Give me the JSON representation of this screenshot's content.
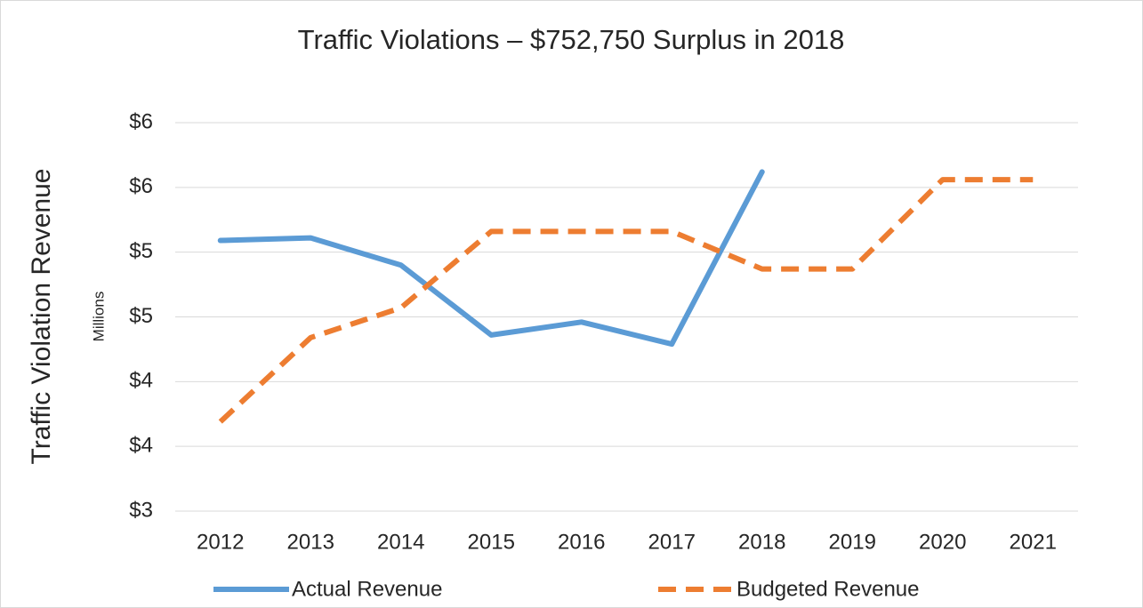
{
  "chart_data": {
    "type": "line",
    "title": "Traffic Violations – $752,750 Surplus in 2018",
    "y_axis_label": "Traffic Violation Revenue",
    "y_unit_label": "Millions",
    "categories": [
      "2012",
      "2013",
      "2014",
      "2015",
      "2016",
      "2017",
      "2018",
      "2019",
      "2020",
      "2021"
    ],
    "series": [
      {
        "name": "Actual Revenue",
        "color": "#5b9bd5",
        "dashed": false,
        "values": [
          5.09,
          5.11,
          4.9,
          4.36,
          4.46,
          4.29,
          5.62,
          null,
          null,
          null
        ]
      },
      {
        "name": "Budgeted Revenue",
        "color": "#ed7d31",
        "dashed": true,
        "values": [
          3.69,
          4.34,
          4.57,
          5.16,
          5.16,
          5.16,
          4.87,
          4.87,
          5.56,
          5.56
        ]
      }
    ],
    "ylim": [
      3,
      6
    ],
    "yticks": [
      {
        "value": 3,
        "label": "$3"
      },
      {
        "value": 3.5,
        "label": "$4"
      },
      {
        "value": 4,
        "label": "$4"
      },
      {
        "value": 4.5,
        "label": "$5"
      },
      {
        "value": 5,
        "label": "$5"
      },
      {
        "value": 5.5,
        "label": "$6"
      },
      {
        "value": 6,
        "label": "$6"
      }
    ],
    "grid": true,
    "legend": "bottom"
  }
}
